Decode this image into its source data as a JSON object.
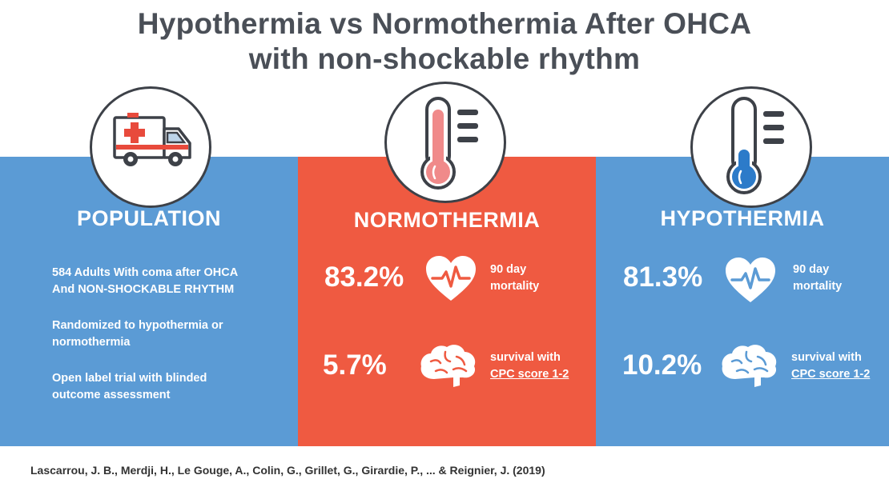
{
  "title": {
    "line1": "Hypothermia vs Normothermia After OHCA",
    "line2": "with non-shockable rhythm"
  },
  "population": {
    "heading": "POPULATION",
    "item1_line1": "584 Adults With coma after OHCA",
    "item1_line2": "And NON-SHOCKABLE RHYTHM",
    "item2_line1": "Randomized to hypothermia or",
    "item2_line2": "normothermia",
    "item3_line1": "Open label trial with blinded",
    "item3_line2": "outcome assessment",
    "icon": "ambulance-icon"
  },
  "normothermia": {
    "heading": "NORMOTHERMIA",
    "mortality_value": "83.2%",
    "mortality_label1": "90 day",
    "mortality_label2": "mortality",
    "survival_value": "5.7%",
    "survival_label1": "survival with",
    "survival_label2": "CPC score 1-2",
    "icon": "thermometer-hot-icon",
    "color": "#ef5a41"
  },
  "hypothermia": {
    "heading": "HYPOTHERMIA",
    "mortality_value": "81.3%",
    "mortality_label1": "90 day",
    "mortality_label2": "mortality",
    "survival_value": "10.2%",
    "survival_label1": "survival with",
    "survival_label2": "CPC score 1-2",
    "icon": "thermometer-cold-icon",
    "color": "#5b9bd5"
  },
  "citation": "Lascarrou, J. B., Merdji, H., Le Gouge, A., Colin, G., Grillet, G., Girardie, P., ... & Reignier, J. (2019)"
}
